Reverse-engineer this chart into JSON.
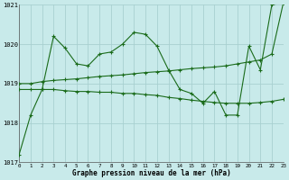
{
  "title": "Graphe pression niveau de la mer (hPa)",
  "background_color": "#c8eaea",
  "grid_color": "#a8d0d0",
  "line_color": "#1a6b1a",
  "xlim": [
    0,
    23
  ],
  "ylim": [
    1017,
    1021
  ],
  "yticks": [
    1017,
    1018,
    1019,
    1020,
    1021
  ],
  "xticks": [
    0,
    1,
    2,
    3,
    4,
    5,
    6,
    7,
    8,
    9,
    10,
    11,
    12,
    13,
    14,
    15,
    16,
    17,
    18,
    19,
    20,
    21,
    22,
    23
  ],
  "series1": {
    "x": [
      0,
      1,
      2,
      3,
      4,
      5,
      6,
      7,
      8,
      9,
      10,
      11,
      12,
      13,
      14,
      15,
      16,
      17,
      18,
      19,
      20,
      21,
      22,
      23
    ],
    "y": [
      1017.2,
      1018.2,
      1018.85,
      1020.2,
      1019.9,
      1019.5,
      1019.45,
      1019.75,
      1019.8,
      1020.0,
      1020.3,
      1020.25,
      1019.95,
      1019.35,
      1018.85,
      1018.75,
      1018.5,
      1018.8,
      1018.2,
      1018.2,
      1019.95,
      1019.35,
      1021.0,
      1021.05
    ]
  },
  "series2": {
    "x": [
      0,
      1,
      2,
      3,
      4,
      5,
      6,
      7,
      8,
      9,
      10,
      11,
      12,
      13,
      14,
      15,
      16,
      17,
      18,
      19,
      20,
      21,
      22,
      23
    ],
    "y": [
      1018.85,
      1018.85,
      1018.85,
      1018.85,
      1018.82,
      1018.8,
      1018.8,
      1018.78,
      1018.78,
      1018.75,
      1018.75,
      1018.72,
      1018.7,
      1018.65,
      1018.62,
      1018.58,
      1018.55,
      1018.52,
      1018.5,
      1018.5,
      1018.5,
      1018.52,
      1018.55,
      1018.6
    ]
  },
  "series3": {
    "x": [
      0,
      1,
      2,
      3,
      4,
      5,
      6,
      7,
      8,
      9,
      10,
      11,
      12,
      13,
      14,
      15,
      16,
      17,
      18,
      19,
      20,
      21,
      22,
      23
    ],
    "y": [
      1019.0,
      1019.0,
      1019.05,
      1019.08,
      1019.1,
      1019.12,
      1019.15,
      1019.18,
      1019.2,
      1019.22,
      1019.25,
      1019.28,
      1019.3,
      1019.32,
      1019.35,
      1019.38,
      1019.4,
      1019.42,
      1019.45,
      1019.5,
      1019.55,
      1019.6,
      1019.75,
      1021.05
    ]
  }
}
